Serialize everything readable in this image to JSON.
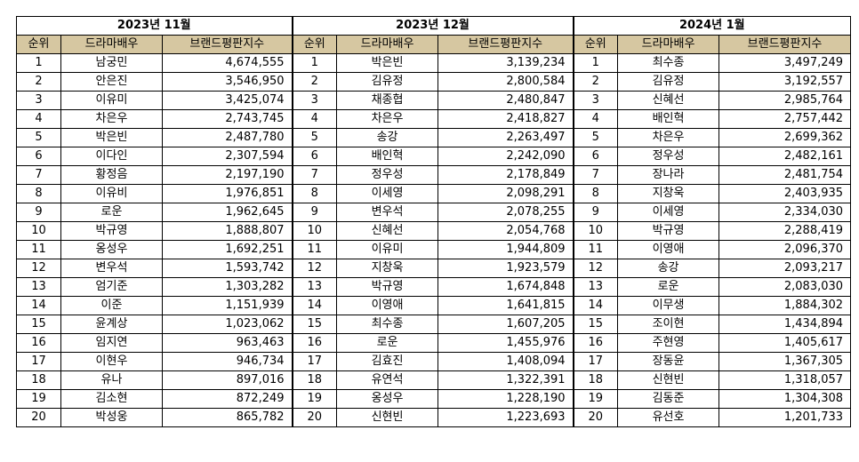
{
  "headers": {
    "rank": "순위",
    "name": "드라마배우",
    "score": "브랜드평판지수"
  },
  "colors": {
    "header_bg": "#d6c7a1",
    "border": "#000000"
  },
  "months": [
    {
      "title": "2023년 11월",
      "rows": [
        {
          "rank": "1",
          "name": "남궁민",
          "score": "4,674,555"
        },
        {
          "rank": "2",
          "name": "안은진",
          "score": "3,546,950"
        },
        {
          "rank": "3",
          "name": "이유미",
          "score": "3,425,074"
        },
        {
          "rank": "4",
          "name": "차은우",
          "score": "2,743,745"
        },
        {
          "rank": "5",
          "name": "박은빈",
          "score": "2,487,780"
        },
        {
          "rank": "6",
          "name": "이다인",
          "score": "2,307,594"
        },
        {
          "rank": "7",
          "name": "황정음",
          "score": "2,197,190"
        },
        {
          "rank": "8",
          "name": "이유비",
          "score": "1,976,851"
        },
        {
          "rank": "9",
          "name": "로운",
          "score": "1,962,645"
        },
        {
          "rank": "10",
          "name": "박규영",
          "score": "1,888,807"
        },
        {
          "rank": "11",
          "name": "옹성우",
          "score": "1,692,251"
        },
        {
          "rank": "12",
          "name": "변우석",
          "score": "1,593,742"
        },
        {
          "rank": "13",
          "name": "엄기준",
          "score": "1,303,282"
        },
        {
          "rank": "14",
          "name": "이준",
          "score": "1,151,939"
        },
        {
          "rank": "15",
          "name": "윤계상",
          "score": "1,023,062"
        },
        {
          "rank": "16",
          "name": "임지연",
          "score": "963,463"
        },
        {
          "rank": "17",
          "name": "이현우",
          "score": "946,734"
        },
        {
          "rank": "18",
          "name": "유나",
          "score": "897,016"
        },
        {
          "rank": "19",
          "name": "김소현",
          "score": "872,249"
        },
        {
          "rank": "20",
          "name": "박성웅",
          "score": "865,782"
        }
      ]
    },
    {
      "title": "2023년 12월",
      "rows": [
        {
          "rank": "1",
          "name": "박은빈",
          "score": "3,139,234"
        },
        {
          "rank": "2",
          "name": "김유정",
          "score": "2,800,584"
        },
        {
          "rank": "3",
          "name": "채종협",
          "score": "2,480,847"
        },
        {
          "rank": "4",
          "name": "차은우",
          "score": "2,418,827"
        },
        {
          "rank": "5",
          "name": "송강",
          "score": "2,263,497"
        },
        {
          "rank": "6",
          "name": "배인혁",
          "score": "2,242,090"
        },
        {
          "rank": "7",
          "name": "정우성",
          "score": "2,178,849"
        },
        {
          "rank": "8",
          "name": "이세영",
          "score": "2,098,291"
        },
        {
          "rank": "9",
          "name": "변우석",
          "score": "2,078,255"
        },
        {
          "rank": "10",
          "name": "신혜선",
          "score": "2,054,768"
        },
        {
          "rank": "11",
          "name": "이유미",
          "score": "1,944,809"
        },
        {
          "rank": "12",
          "name": "지창욱",
          "score": "1,923,579"
        },
        {
          "rank": "13",
          "name": "박규영",
          "score": "1,674,848"
        },
        {
          "rank": "14",
          "name": "이영애",
          "score": "1,641,815"
        },
        {
          "rank": "15",
          "name": "최수종",
          "score": "1,607,205"
        },
        {
          "rank": "16",
          "name": "로운",
          "score": "1,455,976"
        },
        {
          "rank": "17",
          "name": "김효진",
          "score": "1,408,094"
        },
        {
          "rank": "18",
          "name": "유연석",
          "score": "1,322,391"
        },
        {
          "rank": "19",
          "name": "옹성우",
          "score": "1,228,190"
        },
        {
          "rank": "20",
          "name": "신현빈",
          "score": "1,223,693"
        }
      ]
    },
    {
      "title": "2024년 1월",
      "rows": [
        {
          "rank": "1",
          "name": "최수종",
          "score": "3,497,249"
        },
        {
          "rank": "2",
          "name": "김유정",
          "score": "3,192,557"
        },
        {
          "rank": "3",
          "name": "신혜선",
          "score": "2,985,764"
        },
        {
          "rank": "4",
          "name": "배인혁",
          "score": "2,757,442"
        },
        {
          "rank": "5",
          "name": "차은우",
          "score": "2,699,362"
        },
        {
          "rank": "6",
          "name": "정우성",
          "score": "2,482,161"
        },
        {
          "rank": "7",
          "name": "장나라",
          "score": "2,481,754"
        },
        {
          "rank": "8",
          "name": "지창욱",
          "score": "2,403,935"
        },
        {
          "rank": "9",
          "name": "이세영",
          "score": "2,334,030"
        },
        {
          "rank": "10",
          "name": "박규영",
          "score": "2,288,419"
        },
        {
          "rank": "11",
          "name": "이영애",
          "score": "2,096,370"
        },
        {
          "rank": "12",
          "name": "송강",
          "score": "2,093,217"
        },
        {
          "rank": "13",
          "name": "로운",
          "score": "2,083,030"
        },
        {
          "rank": "14",
          "name": "이무생",
          "score": "1,884,302"
        },
        {
          "rank": "15",
          "name": "조이현",
          "score": "1,434,894"
        },
        {
          "rank": "16",
          "name": "주현영",
          "score": "1,405,617"
        },
        {
          "rank": "17",
          "name": "장동윤",
          "score": "1,367,305"
        },
        {
          "rank": "18",
          "name": "신현빈",
          "score": "1,318,057"
        },
        {
          "rank": "19",
          "name": "김동준",
          "score": "1,304,308"
        },
        {
          "rank": "20",
          "name": "유선호",
          "score": "1,201,733"
        }
      ]
    }
  ]
}
